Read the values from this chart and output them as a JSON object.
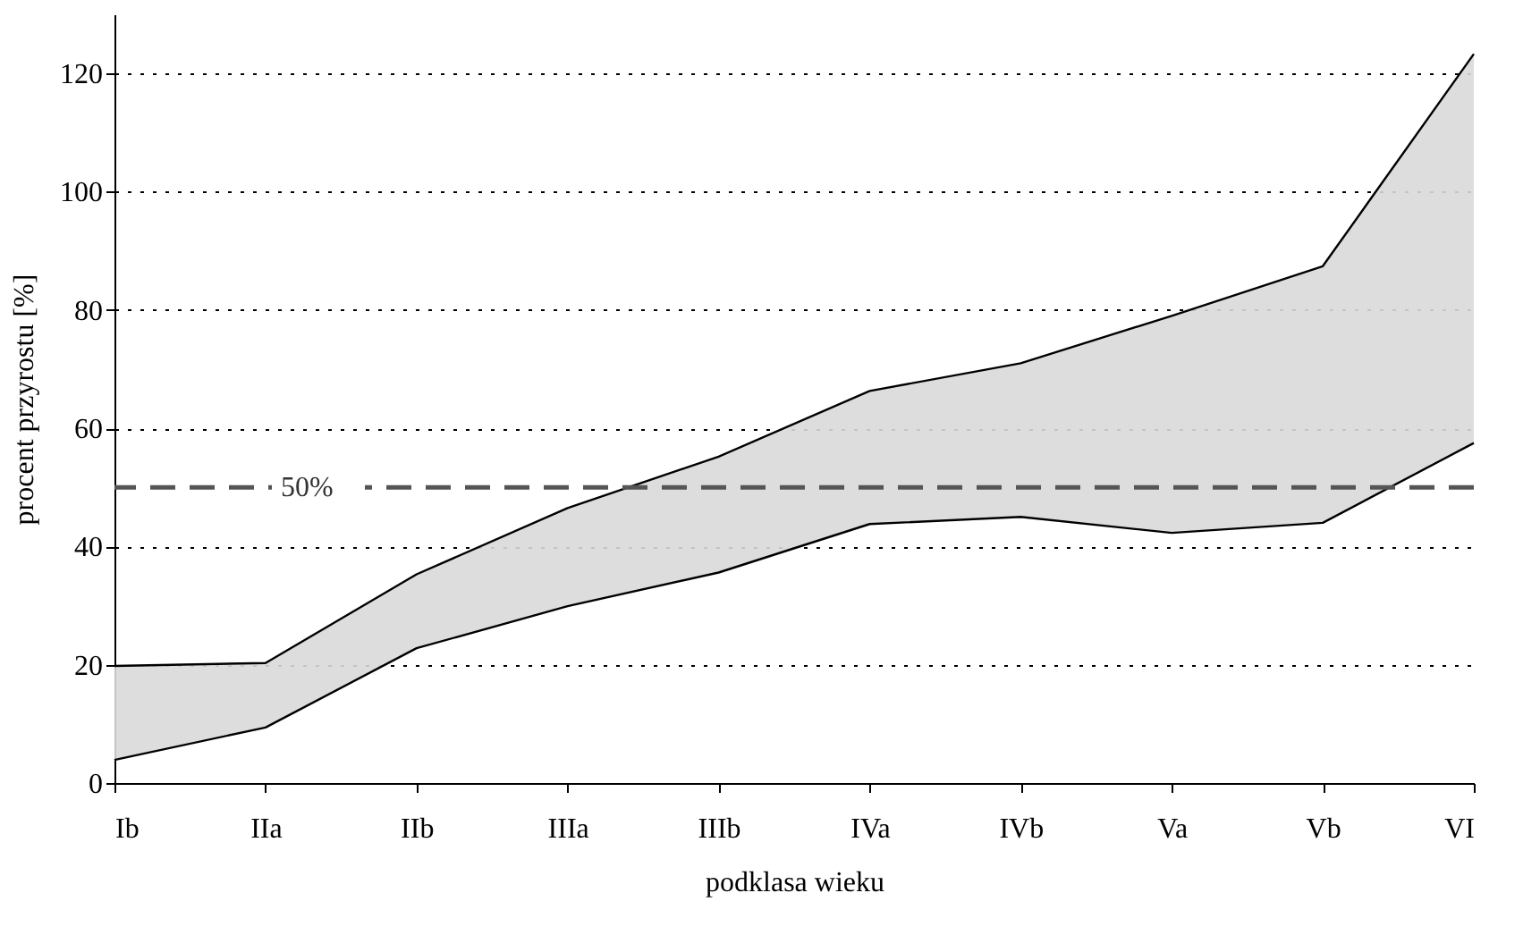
{
  "chart_data": {
    "type": "line",
    "xlabel": "podklasa wieku",
    "ylabel": "procent przyrostu [%]",
    "categories": [
      "Ib",
      "IIa",
      "IIb",
      "IIIa",
      "IIIb",
      "IVa",
      "IVb",
      "Va",
      "Vb",
      "VI"
    ],
    "series": [
      {
        "color": "#000000",
        "values": [
          19.8,
          20.3,
          35.3,
          46.5,
          55.2,
          66.3,
          71,
          79,
          87.4,
          123.3
        ],
        "lower": [
          3.9,
          9.4,
          22.8,
          29.9,
          35.6,
          43.8,
          45,
          42.3,
          44,
          57.5
        ],
        "upper": [
          19.8,
          20.3,
          35.3,
          46.5,
          55.2,
          66.3,
          71,
          79,
          87.4,
          123.3
        ]
      },
      {
        "color": "#000000",
        "values": [
          3.9,
          9.4,
          22.8,
          29.9,
          35.6,
          43.8,
          45,
          42.3,
          44,
          57.5
        ]
      }
    ],
    "ylim": [
      0,
      130
    ],
    "yticks": [
      0,
      20,
      40,
      60,
      80,
      100,
      120
    ],
    "grid": "y",
    "ref_lines": [
      {
        "axis": "y",
        "value": 50,
        "label": "50%",
        "color": "#555555",
        "line_style": "dashed"
      }
    ]
  }
}
